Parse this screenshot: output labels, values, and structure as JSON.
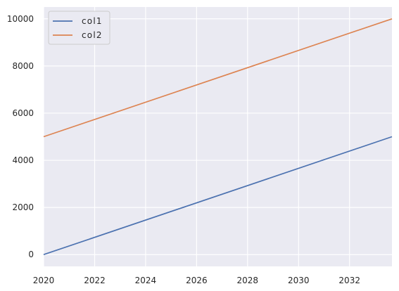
{
  "chart_data": {
    "type": "line",
    "title": "",
    "xlabel": "",
    "ylabel": "",
    "xlim": [
      "2020-01-01",
      "2033-08-31"
    ],
    "ylim": [
      -500,
      10500
    ],
    "x_ticks": [
      "2020",
      "2022",
      "2024",
      "2026",
      "2028",
      "2030",
      "2032"
    ],
    "y_ticks": [
      "0",
      "2000",
      "4000",
      "6000",
      "8000",
      "10000"
    ],
    "grid": true,
    "background": "#eaeaf2",
    "grid_color": "#ffffff",
    "legend_position": "top-left",
    "x": [
      "2020-01-01",
      "2033-08-31"
    ],
    "series": [
      {
        "name": "col1",
        "color": "#4c72b0",
        "values": [
          0,
          5000
        ]
      },
      {
        "name": "col2",
        "color": "#dd8452",
        "values": [
          5000,
          10000
        ]
      }
    ]
  }
}
